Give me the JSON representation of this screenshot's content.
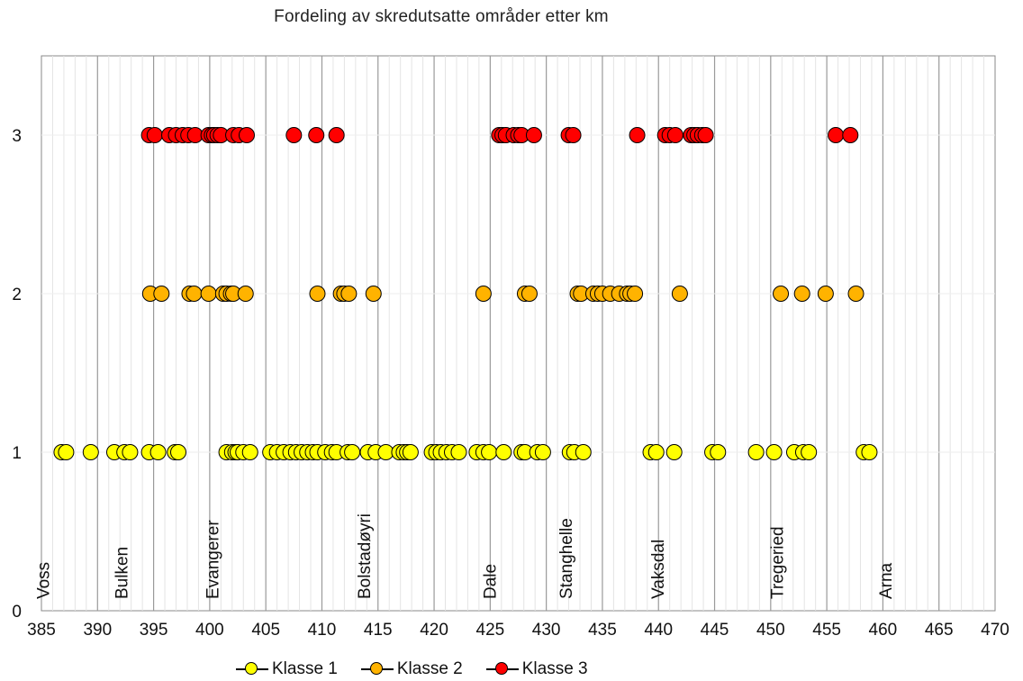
{
  "chart_data": {
    "type": "scatter",
    "title": "Fordeling av skredutsatte områder etter km",
    "xlabel": "",
    "ylabel": "",
    "xlim": [
      385,
      470
    ],
    "ylim": [
      0,
      3.5
    ],
    "x_ticks": [
      "385",
      "390",
      "395",
      "400",
      "405",
      "410",
      "415",
      "420",
      "425",
      "430",
      "435",
      "440",
      "445",
      "450",
      "455",
      "460",
      "465",
      "470"
    ],
    "y_ticks": [
      "0",
      "1",
      "2",
      "3"
    ],
    "grid": "vertical lines every 1 km, major every 5 km",
    "legend_position": "bottom",
    "places": [
      {
        "name": "Voss",
        "km": 385.2
      },
      {
        "name": "Bulken",
        "km": 392.2
      },
      {
        "name": "Evangerer",
        "km": 400.3
      },
      {
        "name": "Bolstadøyri",
        "km": 413.8
      },
      {
        "name": "Dale",
        "km": 425.0
      },
      {
        "name": "Stanghelle",
        "km": 431.8
      },
      {
        "name": "Vaksdal",
        "km": 440.0
      },
      {
        "name": "Tregeried",
        "km": 450.6
      },
      {
        "name": "Arna",
        "km": 460.3
      }
    ],
    "series": [
      {
        "name": "Klasse 1",
        "color": "#ffff00",
        "y": 1,
        "x": [
          386.8,
          387.2,
          389.4,
          391.5,
          392.4,
          392.9,
          394.6,
          395.4,
          396.9,
          397.2,
          401.5,
          402.0,
          402.3,
          402.5,
          403.0,
          403.6,
          405.4,
          406.0,
          406.6,
          407.2,
          407.7,
          408.2,
          408.7,
          409.2,
          409.6,
          410.3,
          410.9,
          411.3,
          412.3,
          412.7,
          414.1,
          414.8,
          415.7,
          416.9,
          417.3,
          417.6,
          417.9,
          419.8,
          420.2,
          420.6,
          421.1,
          421.6,
          422.2,
          423.8,
          424.4,
          424.9,
          426.2,
          427.8,
          428.1,
          429.2,
          429.7,
          432.1,
          432.5,
          433.3,
          439.3,
          439.8,
          441.4,
          444.8,
          445.3,
          448.7,
          450.3,
          452.1,
          452.9,
          453.4,
          458.3,
          458.8
        ]
      },
      {
        "name": "Klasse 2",
        "color": "#ffb300",
        "y": 2,
        "x": [
          394.7,
          395.7,
          398.2,
          398.6,
          399.9,
          401.2,
          401.5,
          401.9,
          402.1,
          403.2,
          409.6,
          411.7,
          412.0,
          412.4,
          414.6,
          424.4,
          428.1,
          428.5,
          432.8,
          433.1,
          434.2,
          434.6,
          435.0,
          435.7,
          436.5,
          437.2,
          437.5,
          437.9,
          441.9,
          450.9,
          452.8,
          454.9,
          457.6
        ]
      },
      {
        "name": "Klasse 3",
        "color": "#ff0000",
        "y": 3,
        "x": [
          394.6,
          395.1,
          396.4,
          397.0,
          397.6,
          398.1,
          398.7,
          399.9,
          400.2,
          400.4,
          400.7,
          401.0,
          402.1,
          402.6,
          403.3,
          407.5,
          409.5,
          411.3,
          425.8,
          426.1,
          426.4,
          427.1,
          427.5,
          427.8,
          428.9,
          432.0,
          432.4,
          438.1,
          440.6,
          441.0,
          441.5,
          442.9,
          443.2,
          443.5,
          443.9,
          444.2,
          455.8,
          457.1
        ]
      }
    ]
  }
}
